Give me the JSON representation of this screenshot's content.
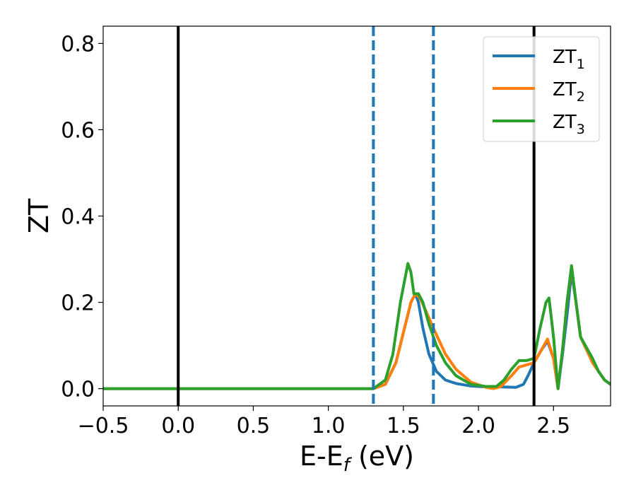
{
  "chart_data": {
    "type": "line",
    "xlabel": "E-E",
    "xlabel_subscript": "f",
    "xlabel_unit": " (eV)",
    "ylabel": "ZT",
    "xlim": [
      -0.5,
      2.88
    ],
    "ylim": [
      -0.04,
      0.84
    ],
    "x_ticks": [
      -0.5,
      0.0,
      0.5,
      1.0,
      1.5,
      2.0,
      2.5
    ],
    "x_tick_labels": [
      "−0.5",
      "0.0",
      "0.5",
      "1.0",
      "1.5",
      "2.0",
      "2.5"
    ],
    "y_ticks": [
      0.0,
      0.2,
      0.4,
      0.6,
      0.8
    ],
    "y_tick_labels": [
      "0.0",
      "0.2",
      "0.4",
      "0.6",
      "0.8"
    ],
    "grid": false,
    "legend_position": "top-right",
    "vlines_solid": [
      0.0,
      2.37
    ],
    "vlines_dashed": [
      1.3,
      1.7
    ],
    "vline_solid_color": "#000000",
    "vline_dashed_color": "#1f77b4",
    "series": [
      {
        "name": "ZT",
        "subscript": "1",
        "color": "#1f77b4",
        "x": [
          -0.5,
          1.0,
          1.3,
          1.38,
          1.45,
          1.5,
          1.55,
          1.58,
          1.6,
          1.63,
          1.67,
          1.72,
          1.78,
          1.85,
          1.95,
          2.05,
          2.15,
          2.25,
          2.3,
          2.33,
          2.37,
          2.42,
          2.46,
          2.5,
          2.53,
          2.56,
          2.59,
          2.62,
          2.65,
          2.68,
          2.72,
          2.76,
          2.8,
          2.84,
          2.88
        ],
        "y": [
          0.0,
          0.0,
          0.0,
          0.01,
          0.06,
          0.13,
          0.2,
          0.22,
          0.2,
          0.14,
          0.08,
          0.04,
          0.02,
          0.012,
          0.006,
          0.004,
          0.004,
          0.003,
          0.01,
          0.03,
          0.06,
          0.09,
          0.11,
          0.07,
          0.0,
          0.08,
          0.17,
          0.27,
          0.2,
          0.12,
          0.09,
          0.065,
          0.04,
          0.02,
          0.01
        ]
      },
      {
        "name": "ZT",
        "subscript": "2",
        "color": "#ff7f0e",
        "x": [
          -0.5,
          1.0,
          1.3,
          1.38,
          1.45,
          1.5,
          1.55,
          1.58,
          1.61,
          1.65,
          1.7,
          1.78,
          1.85,
          1.95,
          2.05,
          2.1,
          2.15,
          2.22,
          2.27,
          2.32,
          2.37,
          2.42,
          2.46,
          2.5,
          2.53,
          2.56,
          2.59,
          2.62,
          2.65,
          2.68,
          2.72,
          2.76,
          2.8,
          2.84,
          2.88
        ],
        "y": [
          0.0,
          0.0,
          0.0,
          0.01,
          0.06,
          0.13,
          0.2,
          0.22,
          0.21,
          0.18,
          0.14,
          0.08,
          0.045,
          0.015,
          0.003,
          0.0,
          0.005,
          0.03,
          0.05,
          0.055,
          0.06,
          0.09,
          0.115,
          0.07,
          0.0,
          0.09,
          0.2,
          0.28,
          0.2,
          0.12,
          0.09,
          0.06,
          0.04,
          0.02,
          0.01
        ]
      },
      {
        "name": "ZT",
        "subscript": "3",
        "color": "#2ca02c",
        "x": [
          -0.5,
          1.0,
          1.3,
          1.38,
          1.43,
          1.48,
          1.53,
          1.55,
          1.57,
          1.6,
          1.63,
          1.67,
          1.72,
          1.78,
          1.85,
          1.95,
          2.05,
          2.12,
          2.17,
          2.22,
          2.27,
          2.32,
          2.37,
          2.41,
          2.45,
          2.47,
          2.5,
          2.53,
          2.56,
          2.59,
          2.62,
          2.65,
          2.68,
          2.72,
          2.76,
          2.8,
          2.84,
          2.88
        ],
        "y": [
          0.0,
          0.0,
          0.0,
          0.02,
          0.08,
          0.2,
          0.29,
          0.27,
          0.22,
          0.22,
          0.2,
          0.15,
          0.1,
          0.06,
          0.03,
          0.01,
          0.005,
          0.005,
          0.02,
          0.045,
          0.065,
          0.065,
          0.07,
          0.14,
          0.2,
          0.21,
          0.12,
          0.0,
          0.09,
          0.2,
          0.285,
          0.2,
          0.12,
          0.095,
          0.07,
          0.04,
          0.02,
          0.01
        ]
      }
    ]
  }
}
